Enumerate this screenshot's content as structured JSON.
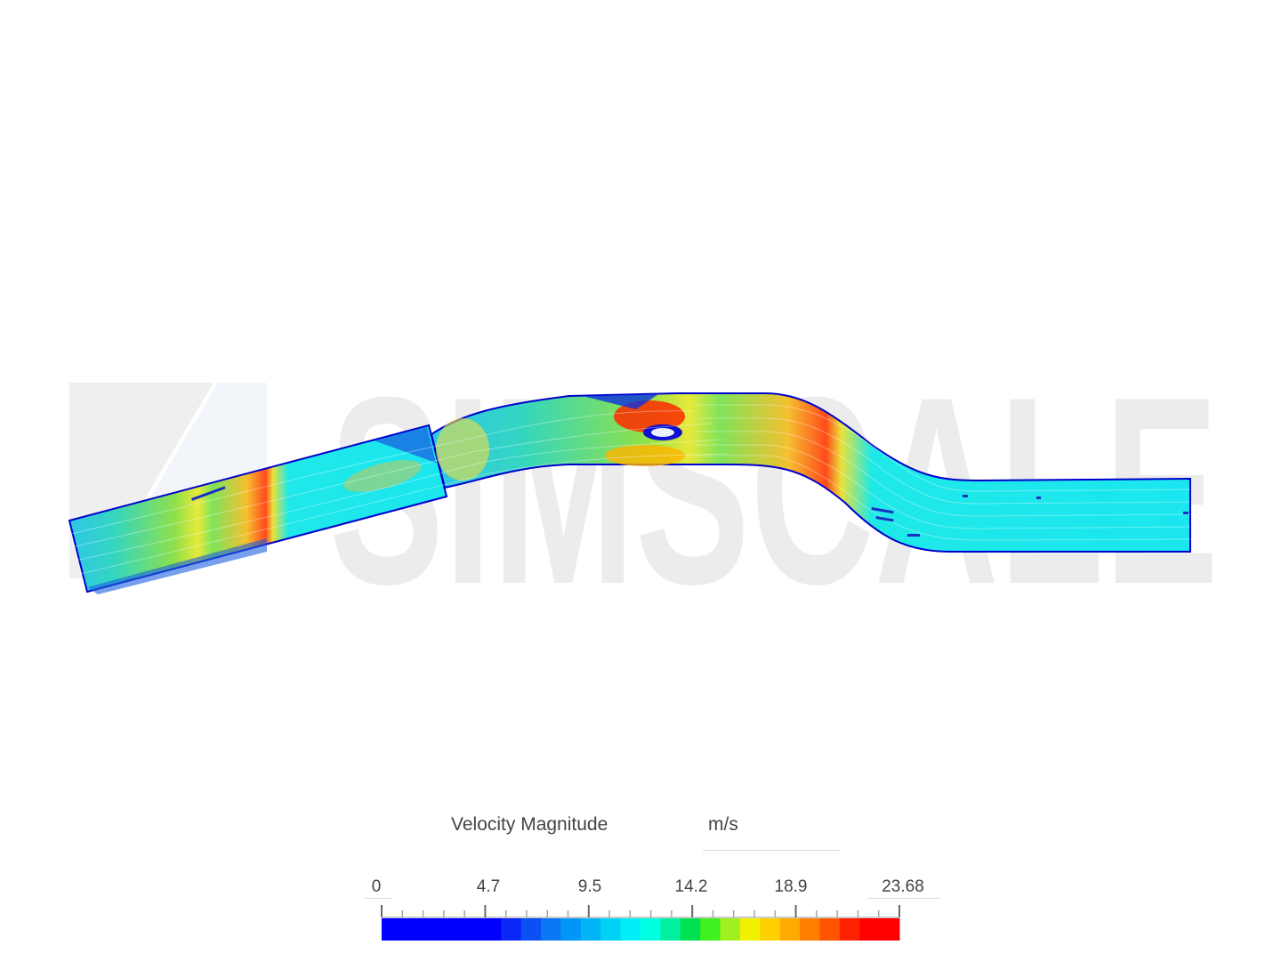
{
  "watermark": {
    "text": "SIMSCALE",
    "color": "#ececec"
  },
  "legend": {
    "title": "Velocity Magnitude",
    "unit": "m/s",
    "min": 0,
    "max": 23.68,
    "tick_labels": [
      "0",
      "4.7",
      "9.5",
      "14.2",
      "18.9",
      "23.68"
    ],
    "colors": [
      "#0000ff",
      "#0000ff",
      "#0000ff",
      "#0000ff",
      "#0000ff",
      "#0000ff",
      "#0a28f5",
      "#0a50f5",
      "#0a78f5",
      "#0096f5",
      "#00b4f5",
      "#00d2f5",
      "#00eef5",
      "#00ffe0",
      "#00f0a0",
      "#00e050",
      "#40f020",
      "#a0f020",
      "#f0f000",
      "#ffd000",
      "#ffaa00",
      "#ff8000",
      "#ff5500",
      "#ff2200",
      "#ff0000",
      "#ff0000"
    ]
  }
}
